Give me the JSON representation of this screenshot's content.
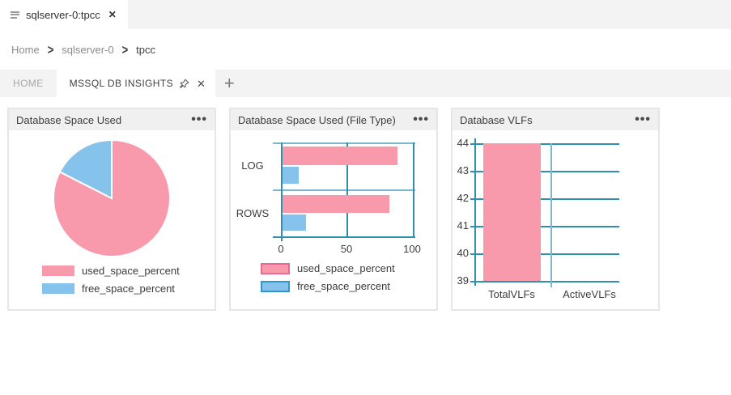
{
  "window": {
    "editor_tab": {
      "label": "sqlserver-0:tpcc",
      "close_glyph": "✕"
    },
    "breadcrumb": {
      "items": [
        "Home",
        "sqlserver-0",
        "tpcc"
      ],
      "separator": ">"
    }
  },
  "panel_tabs": {
    "home_label": "HOME",
    "insights_label": "MSSQL DB INSIGHTS",
    "close_glyph": "✕",
    "new_tab_glyph": "+"
  },
  "icons": {
    "widget_menu_glyph": "•••"
  },
  "colors": {
    "used": "#f89aac",
    "free": "#85c2ec",
    "used_border": "#e76a8f",
    "free_border": "#2f96d0",
    "grid_light": "#7cb8cd",
    "grid_dark": "#2e8fae"
  },
  "chart_data": [
    {
      "type": "pie",
      "title": "Database Space Used",
      "labels": [
        "used_space_percent",
        "free_space_percent"
      ],
      "values": [
        82.5,
        17.5
      ],
      "colors": [
        "#f89aac",
        "#85c2ec"
      ],
      "legend_position": "bottom"
    },
    {
      "type": "bar",
      "orientation": "horizontal",
      "title": "Database Space Used (File Type)",
      "categories": [
        "LOG",
        "ROWS"
      ],
      "series": [
        {
          "name": "used_space_percent",
          "values": [
            87,
            81
          ],
          "color": "#f89aac"
        },
        {
          "name": "free_space_percent",
          "values": [
            12,
            18
          ],
          "color": "#85c2ec"
        }
      ],
      "xlim": [
        0,
        100
      ],
      "xticks": [
        "0",
        "50",
        "100"
      ],
      "grid": true,
      "legend_position": "bottom"
    },
    {
      "type": "bar",
      "orientation": "vertical",
      "title": "Database VLFs",
      "categories": [
        "TotalVLFs",
        "ActiveVLFs"
      ],
      "series": [
        {
          "name": "VLFs",
          "values": [
            44,
            39
          ],
          "color": "#f89aac"
        }
      ],
      "ylim": [
        39,
        44
      ],
      "yticks": [
        "44",
        "43",
        "42",
        "41",
        "40",
        "39"
      ],
      "grid": true,
      "legend_position": "none"
    }
  ]
}
